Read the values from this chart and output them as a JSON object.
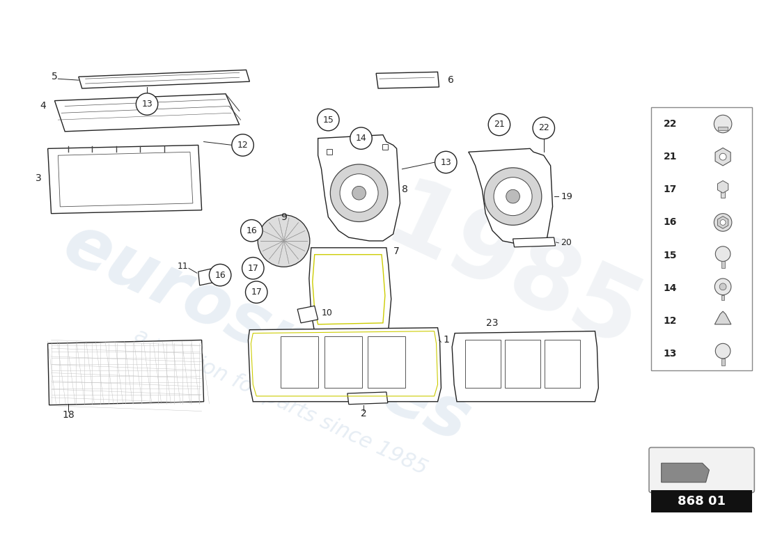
{
  "bg_color": "#ffffff",
  "part_code": "868 01",
  "watermark_eurospares": "eurospares",
  "watermark_tagline": "a passion for parts since 1985",
  "watermark_year": "1985",
  "legend_items": [
    22,
    21,
    17,
    16,
    15,
    14,
    12,
    13
  ]
}
